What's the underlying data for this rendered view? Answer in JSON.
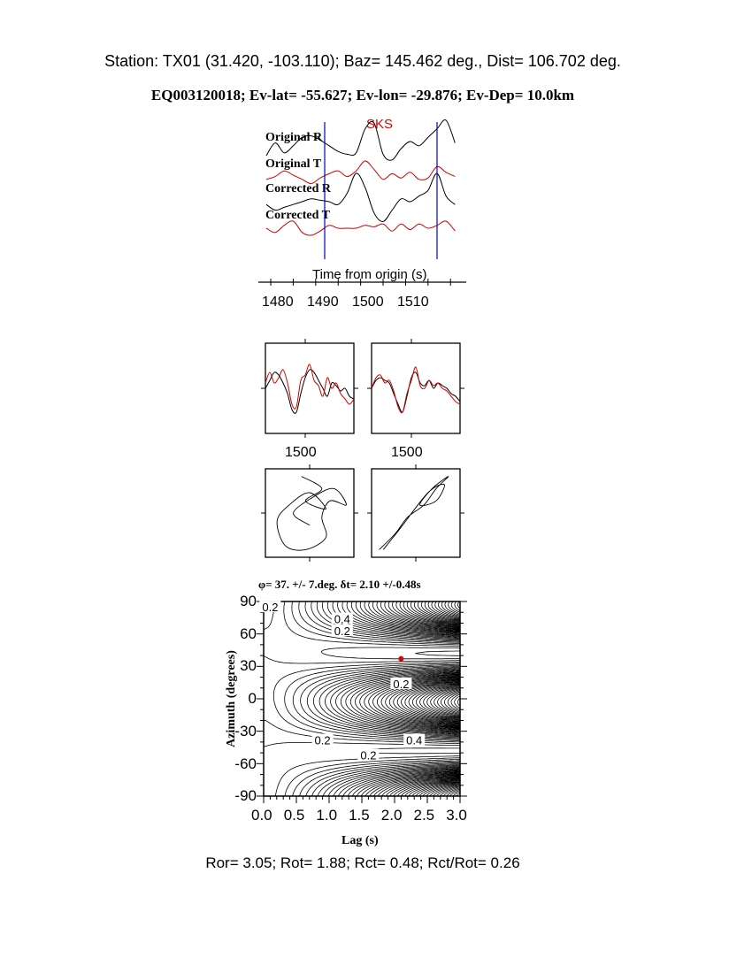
{
  "header": {
    "station_line": "Station: TX01 (31.420, -103.110); Baz=  145.462 deg., Dist=  106.702 deg.",
    "event_line": "EQ003120018; Ev-lat= -55.627; Ev-lon= -29.876; Ev-Dep= 10.0km"
  },
  "footer": "Ror= 3.05; Rot= 1.88; Rct= 0.48; Rct/Rot= 0.26",
  "colors": {
    "radial": "#000000",
    "transverse": "#d00000",
    "window": "#0000cc",
    "best_fit": "#e00000",
    "phase": "#e00000"
  },
  "chart_data": [
    {
      "type": "line",
      "phase_label": "SKS",
      "xlabel": "Time from origin (s)",
      "xlim": [
        1477,
        1520
      ],
      "xticks": [
        "1480",
        "1490",
        "1500",
        "1510"
      ],
      "window": [
        1490,
        1515
      ],
      "t_start": 1477,
      "t_step": 2,
      "series": [
        {
          "name": "Original R",
          "color": "#000000",
          "values": [
            -5,
            4,
            -3,
            2,
            8,
            9,
            6,
            2,
            -2,
            -4,
            -3,
            14,
            18,
            -4,
            -8,
            0,
            5,
            2,
            8,
            14,
            20,
            4
          ]
        },
        {
          "name": "Original T",
          "color": "#d00000",
          "values": [
            -3,
            -1,
            3,
            0,
            -3,
            -6,
            -2,
            1,
            3,
            -1,
            3,
            10,
            4,
            -3,
            1,
            -2,
            2,
            -3,
            -2,
            6,
            2,
            -1
          ]
        },
        {
          "name": "Corrected R",
          "color": "#000000",
          "values": [
            -2,
            -6,
            -4,
            -2,
            0,
            2,
            1,
            0,
            -2,
            6,
            20,
            10,
            -8,
            -14,
            -6,
            2,
            0,
            4,
            8,
            20,
            4,
            -2
          ]
        },
        {
          "name": "Corrected T",
          "color": "#d00000",
          "values": [
            0,
            -3,
            2,
            5,
            -3,
            -5,
            -2,
            2,
            0,
            0,
            0,
            2,
            1,
            3,
            -2,
            3,
            -1,
            3,
            0,
            2,
            5,
            -2
          ]
        }
      ]
    },
    {
      "type": "line",
      "xtick": "1500",
      "panels": [
        {
          "black": [
            0,
            0.3,
            0.6,
            0.5,
            0.2,
            -0.2,
            -0.8,
            -0.9,
            -0.2,
            0.4,
            0.7,
            0.6,
            0.3,
            0.0,
            -0.3,
            0.2,
            0.1,
            -0.1,
            0.0,
            -0.3,
            -0.4
          ],
          "red": [
            0.2,
            0.6,
            0.2,
            0.4,
            0.7,
            0.2,
            -0.6,
            -0.7,
            0.3,
            0.5,
            0.9,
            0.3,
            0.1,
            -0.3,
            0.4,
            0.0,
            0.2,
            -0.2,
            -0.4,
            -0.6,
            -0.4
          ]
        },
        {
          "black": [
            0,
            0.3,
            0.4,
            0.3,
            0.2,
            -0.2,
            -0.6,
            -0.9,
            -0.3,
            0.4,
            0.6,
            0.2,
            0.1,
            0.3,
            0.0,
            0.2,
            0.1,
            0.0,
            -0.2,
            -0.3,
            -0.5
          ],
          "red": [
            0,
            0.4,
            0.5,
            0.2,
            0.3,
            -0.1,
            -0.7,
            -0.9,
            -0.2,
            0.3,
            0.8,
            0.1,
            0.0,
            0.3,
            0.1,
            0.2,
            0.0,
            -0.1,
            -0.3,
            -0.5,
            -0.6
          ]
        }
      ]
    },
    {
      "type": "scatter",
      "description": "particle motion",
      "panels": [
        [
          [
            -0.2,
            0.9
          ],
          [
            0.3,
            0.6
          ],
          [
            -0.1,
            0.3
          ],
          [
            0.4,
            0.1
          ],
          [
            0.0,
            0.5
          ],
          [
            -0.5,
            0.2
          ],
          [
            -0.8,
            -0.2
          ],
          [
            -0.6,
            -0.8
          ],
          [
            -0.1,
            -0.9
          ],
          [
            0.4,
            -0.6
          ],
          [
            0.3,
            -0.1
          ],
          [
            0.5,
            0.3
          ],
          [
            0.9,
            0.2
          ],
          [
            0.6,
            0.6
          ],
          [
            0.1,
            0.4
          ],
          [
            -0.4,
            0.0
          ],
          [
            0.0,
            -0.3
          ]
        ],
        [
          [
            -0.9,
            -0.9
          ],
          [
            -0.5,
            -0.5
          ],
          [
            -0.2,
            -0.1
          ],
          [
            0.2,
            0.2
          ],
          [
            0.5,
            0.6
          ],
          [
            0.8,
            0.9
          ],
          [
            0.4,
            0.6
          ],
          [
            0.1,
            0.2
          ],
          [
            0.5,
            0.3
          ],
          [
            0.7,
            0.7
          ],
          [
            0.3,
            0.5
          ],
          [
            -0.4,
            -0.4
          ],
          [
            -0.8,
            -0.9
          ]
        ]
      ]
    },
    {
      "type": "heatmap",
      "title": "φ= 37. +/- 7.deg. δt= 2.10 +/-0.48s",
      "xlabel": "Lag (s)",
      "ylabel": "Azimuth (degrees)",
      "xlim": [
        0,
        3
      ],
      "ylim": [
        -90,
        90
      ],
      "xticks": [
        "0.0",
        "0.5",
        "1.0",
        "1.5",
        "2.0",
        "2.5",
        "3.0"
      ],
      "yticks": [
        "90",
        "60",
        "30",
        "0",
        "-30",
        "-60",
        "-90"
      ],
      "contour_labels": [
        "0.2",
        "0.4",
        "0.2",
        "0.2",
        "0.2",
        "0.4",
        "0.2"
      ],
      "best_fit": {
        "lag": 2.1,
        "azimuth": 37
      }
    }
  ]
}
